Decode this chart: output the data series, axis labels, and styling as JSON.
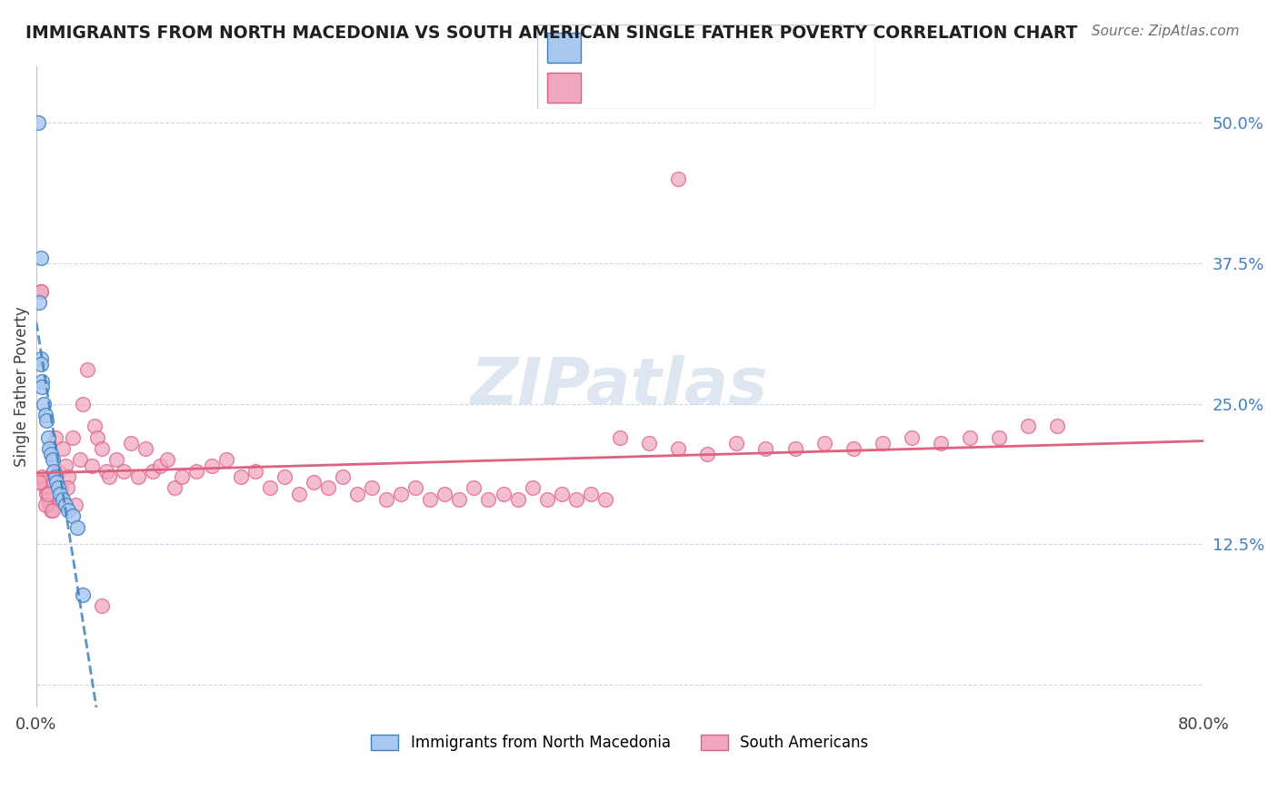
{
  "title": "IMMIGRANTS FROM NORTH MACEDONIA VS SOUTH AMERICAN SINGLE FATHER POVERTY CORRELATION CHART",
  "source_text": "Source: ZipAtlas.com",
  "ylabel": "Single Father Poverty",
  "xlim": [
    0.0,
    0.8
  ],
  "ylim": [
    -0.02,
    0.55
  ],
  "ytick_vals": [
    0.0,
    0.125,
    0.25,
    0.375,
    0.5
  ],
  "ytick_labels": [
    "",
    "12.5%",
    "25.0%",
    "37.5%",
    "50.0%"
  ],
  "color_blue": "#a8c8f0",
  "color_pink": "#f0a8c0",
  "color_blue_line": "#4080c0",
  "color_pink_line": "#e06080",
  "blue_x": [
    0.001,
    0.002,
    0.003,
    0.003,
    0.004,
    0.004,
    0.005,
    0.006,
    0.007,
    0.008,
    0.009,
    0.01,
    0.011,
    0.012,
    0.013,
    0.014,
    0.015,
    0.016,
    0.018,
    0.02,
    0.022,
    0.025,
    0.028,
    0.032,
    0.003
  ],
  "blue_y": [
    0.5,
    0.34,
    0.29,
    0.285,
    0.27,
    0.265,
    0.25,
    0.24,
    0.235,
    0.22,
    0.21,
    0.205,
    0.2,
    0.19,
    0.185,
    0.18,
    0.175,
    0.17,
    0.165,
    0.16,
    0.155,
    0.15,
    0.14,
    0.08,
    0.38
  ],
  "pink_x": [
    0.003,
    0.004,
    0.005,
    0.006,
    0.007,
    0.008,
    0.009,
    0.01,
    0.012,
    0.013,
    0.015,
    0.017,
    0.018,
    0.02,
    0.022,
    0.025,
    0.027,
    0.03,
    0.032,
    0.035,
    0.038,
    0.04,
    0.042,
    0.045,
    0.048,
    0.05,
    0.055,
    0.06,
    0.065,
    0.07,
    0.075,
    0.08,
    0.085,
    0.09,
    0.095,
    0.1,
    0.11,
    0.12,
    0.13,
    0.14,
    0.15,
    0.16,
    0.17,
    0.18,
    0.19,
    0.2,
    0.21,
    0.22,
    0.23,
    0.24,
    0.25,
    0.26,
    0.27,
    0.28,
    0.29,
    0.3,
    0.31,
    0.32,
    0.33,
    0.34,
    0.35,
    0.36,
    0.37,
    0.38,
    0.39,
    0.4,
    0.42,
    0.44,
    0.46,
    0.48,
    0.5,
    0.52,
    0.54,
    0.56,
    0.58,
    0.6,
    0.62,
    0.64,
    0.66,
    0.68,
    0.7,
    0.44,
    0.045,
    0.003,
    0.002,
    0.006,
    0.008,
    0.011,
    0.016,
    0.021
  ],
  "pink_y": [
    0.35,
    0.185,
    0.18,
    0.175,
    0.17,
    0.165,
    0.16,
    0.155,
    0.18,
    0.22,
    0.19,
    0.175,
    0.21,
    0.195,
    0.185,
    0.22,
    0.16,
    0.2,
    0.25,
    0.28,
    0.195,
    0.23,
    0.22,
    0.21,
    0.19,
    0.185,
    0.2,
    0.19,
    0.215,
    0.185,
    0.21,
    0.19,
    0.195,
    0.2,
    0.175,
    0.185,
    0.19,
    0.195,
    0.2,
    0.185,
    0.19,
    0.175,
    0.185,
    0.17,
    0.18,
    0.175,
    0.185,
    0.17,
    0.175,
    0.165,
    0.17,
    0.175,
    0.165,
    0.17,
    0.165,
    0.175,
    0.165,
    0.17,
    0.165,
    0.175,
    0.165,
    0.17,
    0.165,
    0.17,
    0.165,
    0.22,
    0.215,
    0.21,
    0.205,
    0.215,
    0.21,
    0.21,
    0.215,
    0.21,
    0.215,
    0.22,
    0.215,
    0.22,
    0.22,
    0.23,
    0.23,
    0.45,
    0.07,
    0.35,
    0.18,
    0.16,
    0.17,
    0.155,
    0.165,
    0.175
  ]
}
